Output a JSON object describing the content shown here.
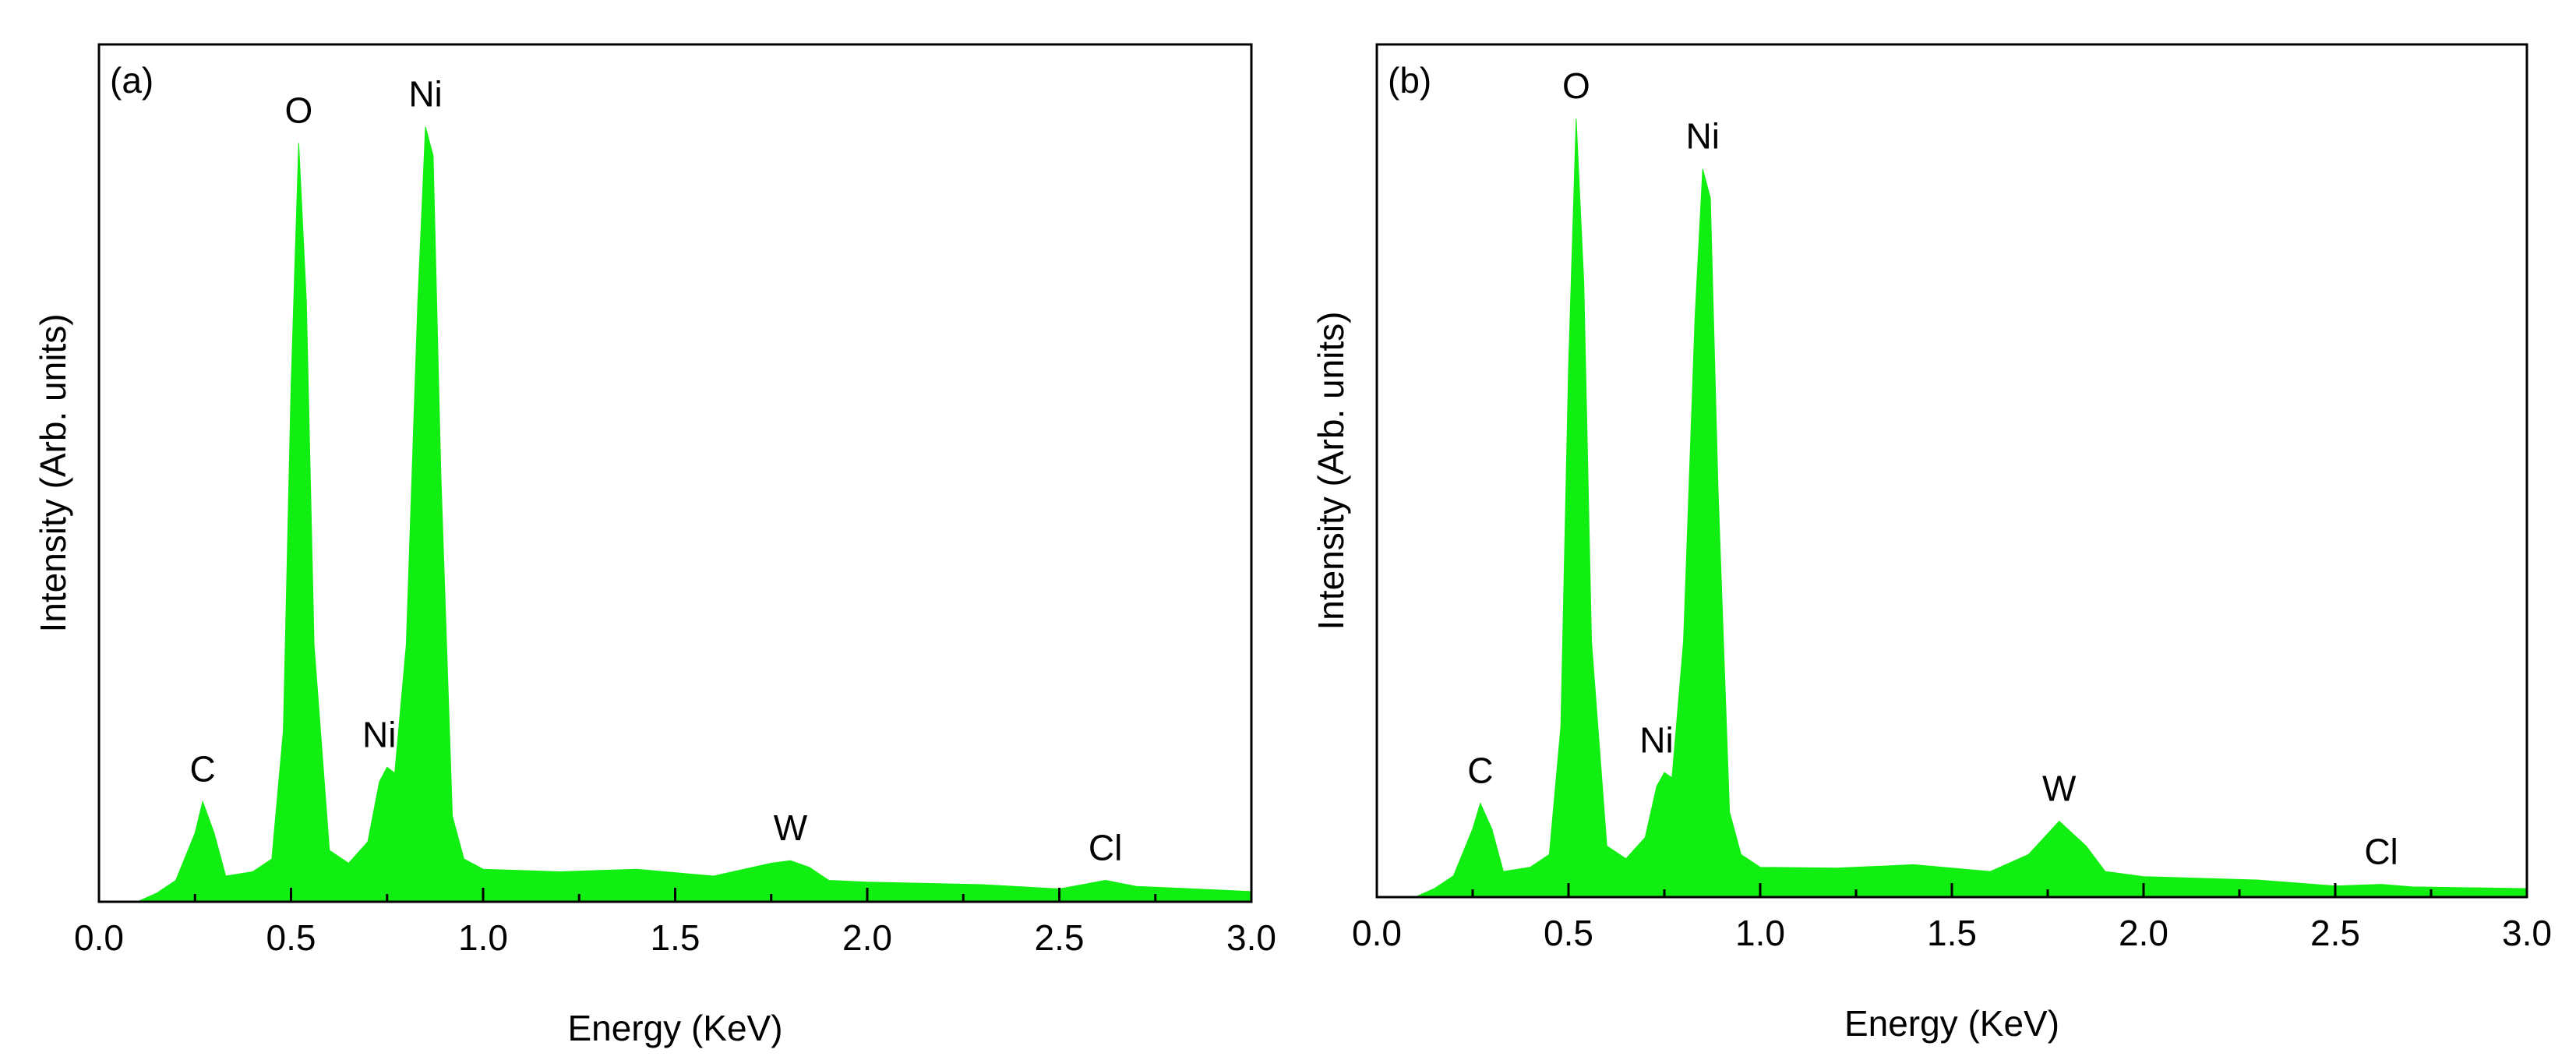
{
  "chart_data": [
    {
      "type": "area",
      "label": "(a)",
      "xlabel": "Energy (KeV)",
      "ylabel": "Intensity (Arb. units)",
      "xlim": [
        0,
        3
      ],
      "ylim": [
        0,
        100
      ],
      "xticks": [
        {
          "value": 0,
          "label": "0.0"
        },
        0.5,
        {
          "value": 1,
          "label": "1.0"
        },
        1.5,
        {
          "value": 2,
          "label": "2.0"
        },
        2.5,
        {
          "value": 3,
          "label": "3.0"
        }
      ],
      "xminorticks": [
        0.25,
        0.75,
        1.25,
        1.75,
        2.25,
        2.75
      ],
      "annotations": [
        {
          "text": "C",
          "x": 0.27
        },
        {
          "text": "O",
          "x": 0.52
        },
        {
          "text": "Ni",
          "x": 0.75
        },
        {
          "text": "Ni",
          "x": 0.85
        },
        {
          "text": "W",
          "x": 1.8
        },
        {
          "text": "Cl",
          "x": 2.62
        }
      ],
      "series": [
        {
          "color": "#11ee11",
          "x": [
            0.1,
            0.15,
            0.2,
            0.25,
            0.27,
            0.3,
            0.33,
            0.4,
            0.45,
            0.48,
            0.5,
            0.52,
            0.54,
            0.56,
            0.6,
            0.65,
            0.7,
            0.73,
            0.75,
            0.77,
            0.8,
            0.83,
            0.85,
            0.87,
            0.89,
            0.92,
            0.95,
            1.0,
            1.2,
            1.4,
            1.6,
            1.75,
            1.8,
            1.85,
            1.9,
            2.0,
            2.3,
            2.5,
            2.62,
            2.7,
            3.0
          ],
          "values": [
            0,
            1,
            2.5,
            8,
            11.7,
            8,
            3,
            3.5,
            5,
            20,
            60,
            88.5,
            70,
            30,
            6,
            4.5,
            7,
            14,
            15.7,
            15,
            30,
            70,
            90.4,
            87,
            50,
            10,
            5,
            3.8,
            3.5,
            3.8,
            3,
            4.5,
            4.8,
            4,
            2.5,
            2.3,
            2,
            1.5,
            2.5,
            1.8,
            1.2
          ]
        }
      ]
    },
    {
      "type": "area",
      "label": "(b)",
      "xlabel": "Energy (KeV)",
      "ylabel": "Intensity (Arb. units)",
      "xlim": [
        0,
        3
      ],
      "ylim": [
        0,
        100
      ],
      "xticks": [
        {
          "value": 0,
          "label": "0.0"
        },
        0.5,
        {
          "value": 1,
          "label": "1.0"
        },
        1.5,
        {
          "value": 2,
          "label": "2.0"
        },
        2.5,
        {
          "value": 3,
          "label": "3.0"
        }
      ],
      "xminorticks": [
        0.25,
        0.75,
        1.25,
        1.75,
        2.25,
        2.75
      ],
      "annotations": [
        {
          "text": "C",
          "x": 0.27
        },
        {
          "text": "O",
          "x": 0.52
        },
        {
          "text": "Ni",
          "x": 0.75
        },
        {
          "text": "Ni",
          "x": 0.85
        },
        {
          "text": "W",
          "x": 1.78
        },
        {
          "text": "Cl",
          "x": 2.62
        }
      ],
      "series": [
        {
          "color": "#11ee11",
          "x": [
            0.1,
            0.15,
            0.2,
            0.25,
            0.27,
            0.3,
            0.33,
            0.4,
            0.45,
            0.48,
            0.5,
            0.52,
            0.54,
            0.56,
            0.6,
            0.65,
            0.7,
            0.73,
            0.75,
            0.77,
            0.8,
            0.83,
            0.85,
            0.87,
            0.89,
            0.92,
            0.95,
            1.0,
            1.2,
            1.4,
            1.6,
            1.7,
            1.78,
            1.85,
            1.9,
            2.0,
            2.3,
            2.5,
            2.62,
            2.7,
            3.0
          ],
          "values": [
            0,
            1,
            2.5,
            8,
            11,
            8,
            3,
            3.5,
            5,
            20,
            62,
            91.3,
            72,
            30,
            6,
            4.5,
            7,
            13,
            14.6,
            14,
            30,
            68,
            85.4,
            82,
            48,
            10,
            5,
            3.5,
            3.4,
            3.8,
            3,
            5,
            8.9,
            6,
            3,
            2.4,
            2,
            1.3,
            1.5,
            1.2,
            1
          ]
        }
      ]
    }
  ]
}
